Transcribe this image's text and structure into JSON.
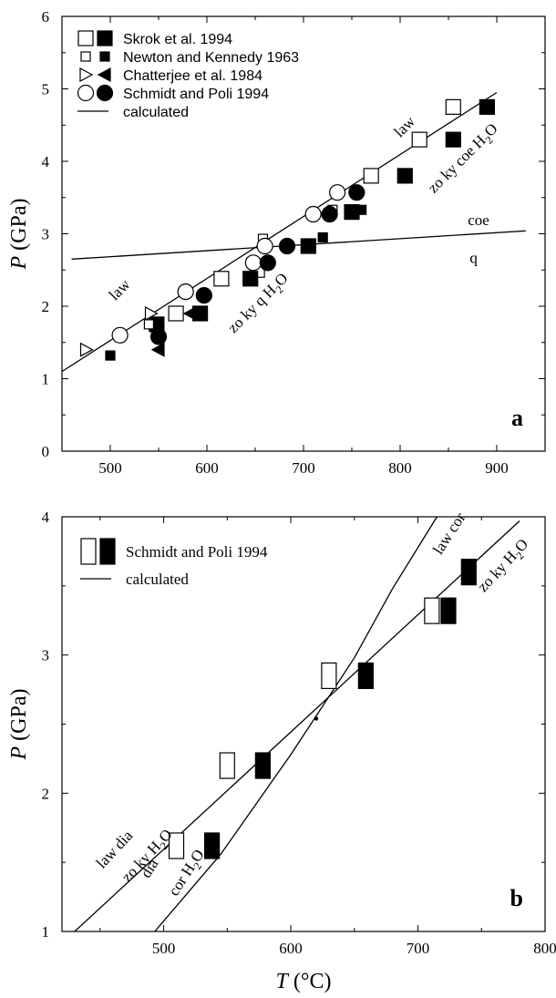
{
  "chart_data": [
    {
      "panel": "a",
      "type": "scatter",
      "xlim": [
        450,
        950
      ],
      "ylim": [
        0,
        6
      ],
      "xticks": [
        500,
        600,
        700,
        800,
        900
      ],
      "yticks": [
        0,
        1,
        2,
        3,
        4,
        5,
        6
      ],
      "ylabel": {
        "italic": "P",
        "rest": " (GPa)"
      },
      "panel_label": "a",
      "legend": {
        "position": "top-left",
        "entries": [
          {
            "label": "Skrok et al. 1994",
            "symbols": [
              "square-open",
              "square-filled"
            ]
          },
          {
            "label": "Newton and Kennedy 1963",
            "symbols": [
              "small-square-open",
              "small-square-filled"
            ]
          },
          {
            "label": "Chatterjee et al. 1984",
            "symbols": [
              "triangle-right-open",
              "triangle-left-filled"
            ]
          },
          {
            "label": "Schmidt and Poli 1994",
            "symbols": [
              "circle-open",
              "circle-filled"
            ]
          },
          {
            "label": "calculated",
            "symbols": [
              "line"
            ]
          }
        ]
      },
      "lines": [
        {
          "x": [
            450,
            900
          ],
          "y": [
            1.1,
            4.95
          ]
        },
        {
          "x": [
            460,
            930
          ],
          "y": [
            2.65,
            3.04
          ]
        }
      ],
      "annotations": [
        {
          "text": "law",
          "x": 800,
          "y": 4.32,
          "rotate": -45
        },
        {
          "text": "zo ky coe H2O",
          "x": 835,
          "y": 3.55,
          "rotate": -45
        },
        {
          "text": "coe",
          "x": 870,
          "y": 3.12,
          "rotate": 0
        },
        {
          "text": "q",
          "x": 872,
          "y": 2.6,
          "rotate": 0
        },
        {
          "text": "law",
          "x": 505,
          "y": 2.07,
          "rotate": -45
        },
        {
          "text": "zo ky q H2O",
          "x": 628,
          "y": 1.62,
          "rotate": -45
        }
      ],
      "series": [
        {
          "symbol": "square-open",
          "points": [
            [
              568,
              1.9
            ],
            [
              615,
              2.38
            ],
            [
              652,
              2.5
            ],
            [
              770,
              3.8
            ],
            [
              820,
              4.3
            ],
            [
              855,
              4.75
            ]
          ]
        },
        {
          "symbol": "square-filled",
          "points": [
            [
              548,
              1.75
            ],
            [
              593,
              1.9
            ],
            [
              645,
              2.38
            ],
            [
              705,
              2.83
            ],
            [
              750,
              3.3
            ],
            [
              805,
              3.8
            ],
            [
              855,
              4.3
            ],
            [
              890,
              4.75
            ]
          ]
        },
        {
          "symbol": "small-square-open",
          "points": [
            [
              540,
              1.75
            ],
            [
              658,
              2.93
            ],
            [
              730,
              3.33
            ]
          ]
        },
        {
          "symbol": "small-square-filled",
          "points": [
            [
              500,
              1.32
            ],
            [
              720,
              2.95
            ],
            [
              760,
              3.33
            ]
          ]
        },
        {
          "symbol": "triangle-right-open",
          "points": [
            [
              475,
              1.4
            ],
            [
              542,
              1.9
            ]
          ]
        },
        {
          "symbol": "triangle-left-filled",
          "points": [
            [
              550,
              1.4
            ],
            [
              583,
              1.9
            ]
          ]
        },
        {
          "symbol": "circle-open",
          "points": [
            [
              510,
              1.6
            ],
            [
              578,
              2.2
            ],
            [
              648,
              2.6
            ],
            [
              660,
              2.83
            ],
            [
              710,
              3.27
            ],
            [
              735,
              3.57
            ]
          ]
        },
        {
          "symbol": "circle-filled",
          "points": [
            [
              550,
              1.58
            ],
            [
              597,
              2.15
            ],
            [
              663,
              2.6
            ],
            [
              683,
              2.83
            ],
            [
              727,
              3.27
            ],
            [
              755,
              3.57
            ]
          ]
        }
      ]
    },
    {
      "panel": "b",
      "type": "scatter",
      "xlim": [
        420,
        800
      ],
      "ylim": [
        1,
        4
      ],
      "xticks": [
        500,
        600,
        700,
        800
      ],
      "yticks": [
        1,
        2,
        3,
        4
      ],
      "ylabel": {
        "italic": "P",
        "rest": " (GPa)"
      },
      "xlabel": {
        "italic": "T",
        "rest": " (°C)"
      },
      "panel_label": "b",
      "legend": {
        "position": "top-left",
        "entries": [
          {
            "label": "Schmidt and Poli 1994",
            "symbols": [
              "rect-open",
              "rect-filled"
            ]
          },
          {
            "label": "calculated",
            "symbols": [
              "line"
            ]
          }
        ]
      },
      "lines": [
        {
          "x": [
            430,
            780
          ],
          "y": [
            1.0,
            3.97
          ]
        },
        {
          "x": [
            493,
            545,
            600,
            650,
            680,
            715
          ],
          "y": [
            1.0,
            1.56,
            2.28,
            2.98,
            3.48,
            4.0
          ]
        }
      ],
      "annotations": [
        {
          "text": "law cor",
          "x": 718,
          "y": 3.72,
          "rotate": -57
        },
        {
          "text": "zo ky H2O",
          "x": 752,
          "y": 3.45,
          "rotate": -47
        },
        {
          "text": "law dia",
          "x": 452,
          "y": 1.45,
          "rotate": -47
        },
        {
          "text": "zo ky H2O",
          "x": 472,
          "y": 1.35,
          "rotate": -47
        },
        {
          "text": "dia",
          "x": 488,
          "y": 1.38,
          "rotate": -57
        },
        {
          "text": "cor H2O",
          "x": 510,
          "y": 1.25,
          "rotate": -57
        }
      ],
      "series": [
        {
          "symbol": "rect-open",
          "points": [
            [
              510,
              1.62
            ],
            [
              550,
              2.2
            ],
            [
              630,
              2.85
            ],
            [
              711,
              3.32
            ]
          ]
        },
        {
          "symbol": "rect-filled",
          "points": [
            [
              538,
              1.62
            ],
            [
              578,
              2.2
            ],
            [
              659,
              2.85
            ],
            [
              724,
              3.32
            ],
            [
              740,
              3.6
            ]
          ]
        }
      ]
    }
  ]
}
